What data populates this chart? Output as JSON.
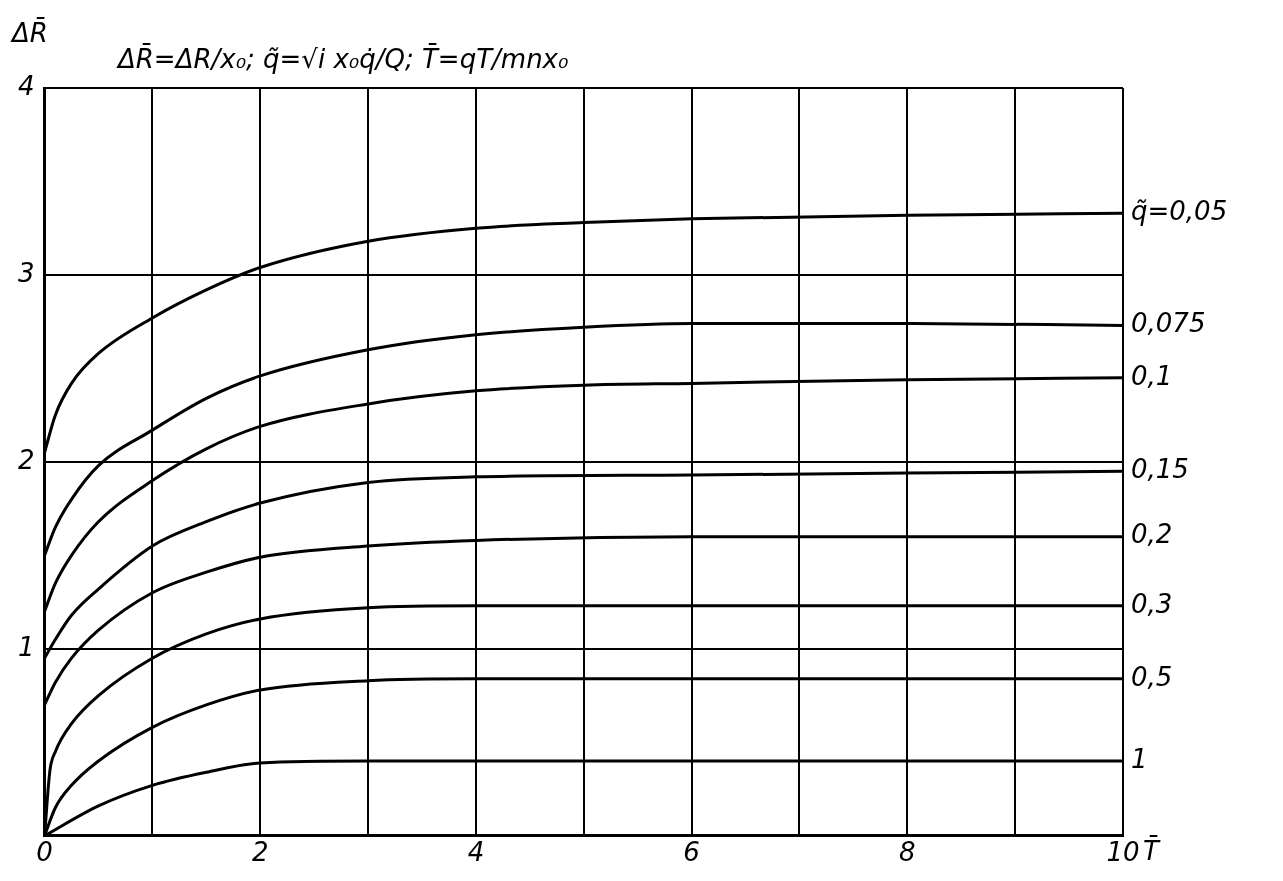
{
  "chart_data": {
    "type": "line",
    "title": "ΔR̄=ΔR/x₀;  q̃=√i x₀q̇/Q;  T̄=qT/mnx₀",
    "xlabel": "T̄",
    "ylabel": "ΔR̄",
    "xlim": [
      0,
      10
    ],
    "ylim": [
      0,
      4
    ],
    "xticks": [
      0,
      {
        "value": 1,
        "label": null
      },
      2,
      {
        "value": 3,
        "label": null
      },
      4,
      {
        "value": 5,
        "label": null
      },
      6,
      {
        "value": 7,
        "label": null
      },
      8,
      {
        "value": 9,
        "label": null
      },
      10
    ],
    "yticks": [
      {
        "value": 0,
        "label": null
      },
      1,
      2,
      3,
      4
    ],
    "grid": true,
    "legend": false,
    "marker": "none",
    "line_style": "solid",
    "series": [
      {
        "name": "q̃=0,05",
        "color": "#000000",
        "x": [
          0,
          0.1,
          0.25,
          0.5,
          1,
          1.5,
          2,
          3,
          4,
          5,
          6,
          8,
          10
        ],
        "values": [
          2.05,
          2.25,
          2.42,
          2.58,
          2.77,
          2.92,
          3.04,
          3.18,
          3.25,
          3.28,
          3.3,
          3.32,
          3.33
        ]
      },
      {
        "name": "0,075",
        "color": "#000000",
        "x": [
          0,
          0.1,
          0.25,
          0.5,
          1,
          1.5,
          2,
          3,
          4,
          5,
          6,
          8,
          10
        ],
        "values": [
          1.5,
          1.65,
          1.8,
          1.98,
          2.17,
          2.34,
          2.46,
          2.6,
          2.68,
          2.72,
          2.74,
          2.74,
          2.73
        ]
      },
      {
        "name": "0,1",
        "color": "#000000",
        "x": [
          0,
          0.1,
          0.25,
          0.5,
          1,
          1.5,
          2,
          3,
          4,
          5,
          6,
          8,
          10
        ],
        "values": [
          1.2,
          1.35,
          1.5,
          1.68,
          1.9,
          2.07,
          2.19,
          2.31,
          2.38,
          2.41,
          2.42,
          2.44,
          2.45
        ]
      },
      {
        "name": "0,15",
        "color": "#000000",
        "x": [
          0,
          0.1,
          0.25,
          0.5,
          1,
          1.5,
          2,
          3,
          4,
          6,
          8,
          10
        ],
        "values": [
          0.95,
          1.05,
          1.18,
          1.32,
          1.55,
          1.68,
          1.78,
          1.89,
          1.92,
          1.93,
          1.94,
          1.95
        ]
      },
      {
        "name": "0,2",
        "color": "#000000",
        "x": [
          0,
          0.1,
          0.25,
          0.5,
          1,
          1.5,
          2,
          3,
          4,
          6,
          10
        ],
        "values": [
          0.7,
          0.82,
          0.95,
          1.1,
          1.3,
          1.41,
          1.49,
          1.55,
          1.58,
          1.6,
          1.6
        ]
      },
      {
        "name": "0,3",
        "color": "#000000",
        "x": [
          0,
          0.05,
          0.1,
          0.25,
          0.5,
          1,
          1.5,
          2,
          3,
          4,
          10
        ],
        "values": [
          0,
          0.35,
          0.45,
          0.6,
          0.75,
          0.95,
          1.08,
          1.16,
          1.22,
          1.23,
          1.23
        ]
      },
      {
        "name": "0,5",
        "color": "#000000",
        "x": [
          0,
          0.1,
          0.25,
          0.5,
          1,
          1.5,
          2,
          3,
          4,
          10
        ],
        "values": [
          0,
          0.15,
          0.27,
          0.4,
          0.58,
          0.7,
          0.78,
          0.83,
          0.84,
          0.84
        ]
      },
      {
        "name": "1",
        "color": "#000000",
        "x": [
          0,
          0.5,
          1,
          1.5,
          2,
          3,
          10
        ],
        "values": [
          0,
          0.16,
          0.27,
          0.34,
          0.39,
          0.4,
          0.4
        ]
      }
    ]
  }
}
